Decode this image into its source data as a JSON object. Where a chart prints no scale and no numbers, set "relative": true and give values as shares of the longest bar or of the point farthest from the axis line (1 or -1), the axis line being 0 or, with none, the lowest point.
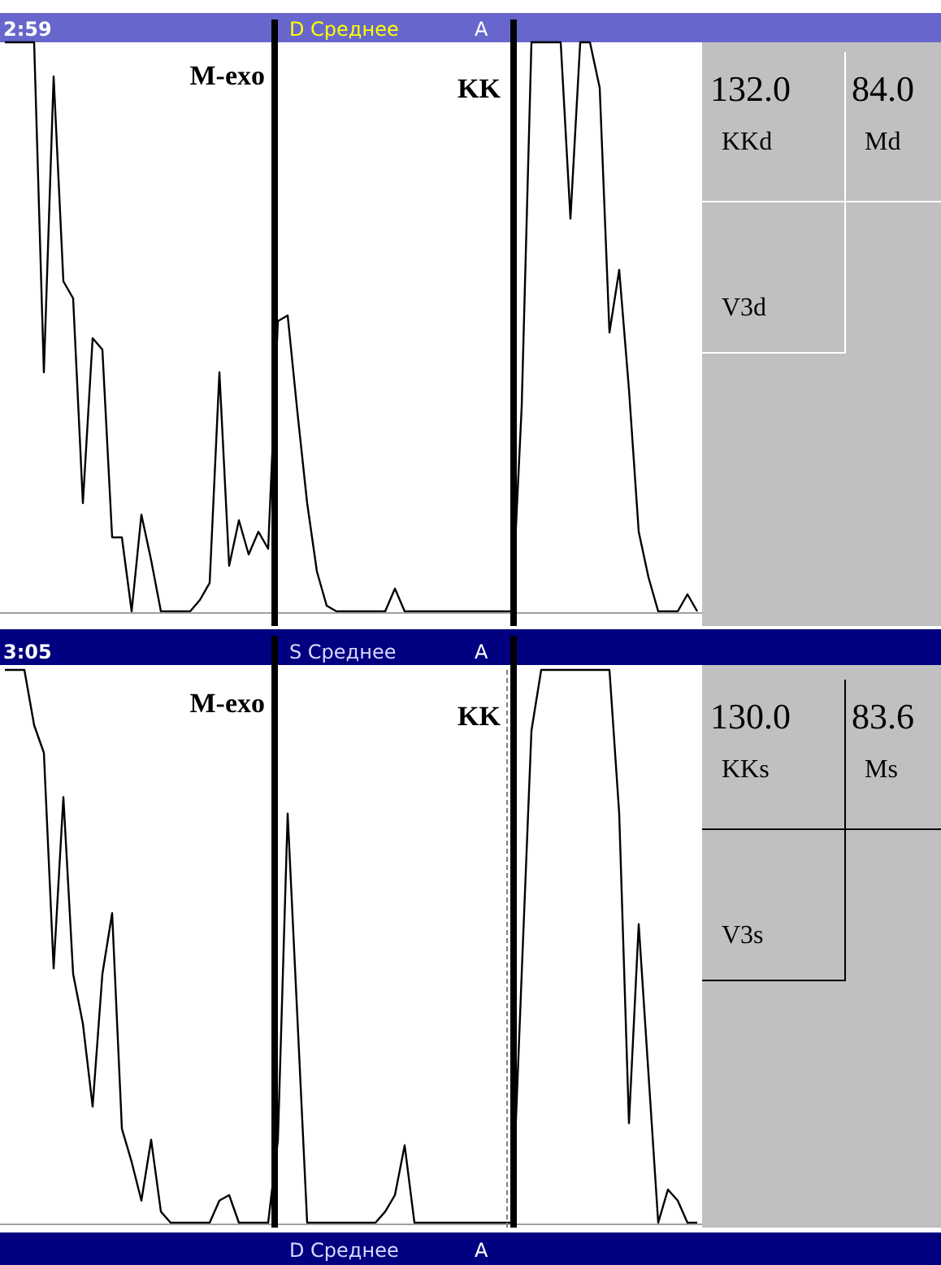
{
  "chart_data": [
    {
      "type": "line",
      "title": "D Среднее",
      "annotations": [
        "2:59",
        "A",
        "M-exo",
        "KK"
      ],
      "relative": true,
      "categories": [
        null,
        null,
        null,
        null,
        null,
        null,
        null,
        null,
        null,
        null,
        null,
        null,
        null,
        null,
        null,
        null,
        null,
        null,
        null,
        null,
        null,
        null,
        null,
        null,
        null,
        null,
        null,
        null,
        null,
        null,
        null,
        null,
        null,
        null,
        null,
        null,
        null,
        null,
        null,
        null,
        null,
        null,
        null,
        null,
        null,
        null,
        null,
        null,
        null,
        null,
        null,
        null,
        null,
        null,
        null,
        null,
        null,
        null,
        null,
        null,
        null,
        null,
        null,
        null,
        null,
        null,
        null,
        null,
        null,
        null,
        null,
        null
      ],
      "series": [
        {
          "color": "#000000",
          "values": [
            1,
            1,
            1,
            1,
            0.42,
            0.94,
            0.58,
            0.55,
            0.19,
            0.48,
            0.46,
            0.13,
            0.13,
            0,
            0.17,
            0.09,
            0,
            0,
            0,
            0,
            0.02,
            0.05,
            0.42,
            0.08,
            0.16,
            0.1,
            0.14,
            0.11,
            0.51,
            0.52,
            0.35,
            0.19,
            0.07,
            0.01,
            0,
            0,
            0,
            0,
            0,
            0,
            0.04,
            0,
            0,
            0,
            0,
            0,
            0,
            0,
            0,
            0,
            0,
            0,
            0,
            0.36,
            1,
            1,
            1,
            1,
            0.69,
            1,
            1,
            0.92,
            0.49,
            0.6,
            0.39,
            0.14,
            0.06,
            0,
            0,
            0,
            0.03,
            0
          ]
        }
      ]
    },
    {
      "type": "other",
      "annotations": [
        "132.0",
        "KKd",
        "84.0",
        "Md",
        "V3d"
      ]
    },
    {
      "type": "line",
      "title": "S Среднее",
      "annotations": [
        "3:05",
        "A",
        "M-exo",
        "KK",
        "D Среднее",
        "A"
      ],
      "relative": true,
      "categories": [
        null,
        null,
        null,
        null,
        null,
        null,
        null,
        null,
        null,
        null,
        null,
        null,
        null,
        null,
        null,
        null,
        null,
        null,
        null,
        null,
        null,
        null,
        null,
        null,
        null,
        null,
        null,
        null,
        null,
        null,
        null,
        null,
        null,
        null,
        null,
        null,
        null,
        null,
        null,
        null,
        null,
        null,
        null,
        null,
        null,
        null,
        null,
        null,
        null,
        null,
        null,
        null,
        null,
        null,
        null,
        null,
        null,
        null,
        null,
        null,
        null,
        null,
        null,
        null,
        null,
        null,
        null,
        null,
        null,
        null,
        null,
        null
      ],
      "series": [
        {
          "color": "#000000",
          "values": [
            1,
            1,
            1,
            0.9,
            0.85,
            0.46,
            0.77,
            0.45,
            0.36,
            0.21,
            0.45,
            0.56,
            0.17,
            0.11,
            0.04,
            0.15,
            0.02,
            0,
            0,
            0,
            0,
            0,
            0.04,
            0.05,
            0,
            0,
            0,
            0,
            0.15,
            0.74,
            0.37,
            0,
            0,
            0,
            0,
            0,
            0,
            0,
            0,
            0.02,
            0.05,
            0.14,
            0,
            0,
            0,
            0,
            0,
            0,
            0,
            0,
            0,
            0,
            0,
            0.45,
            0.89,
            1,
            1,
            1,
            1,
            1,
            1,
            1,
            1,
            0.74,
            0.18,
            0.54,
            0.27,
            0,
            0.06,
            0.04,
            0,
            0
          ]
        }
      ]
    },
    {
      "type": "other",
      "annotations": [
        "130.0",
        "KKs",
        "83.6",
        "Ms",
        "V3s"
      ]
    }
  ]
}
